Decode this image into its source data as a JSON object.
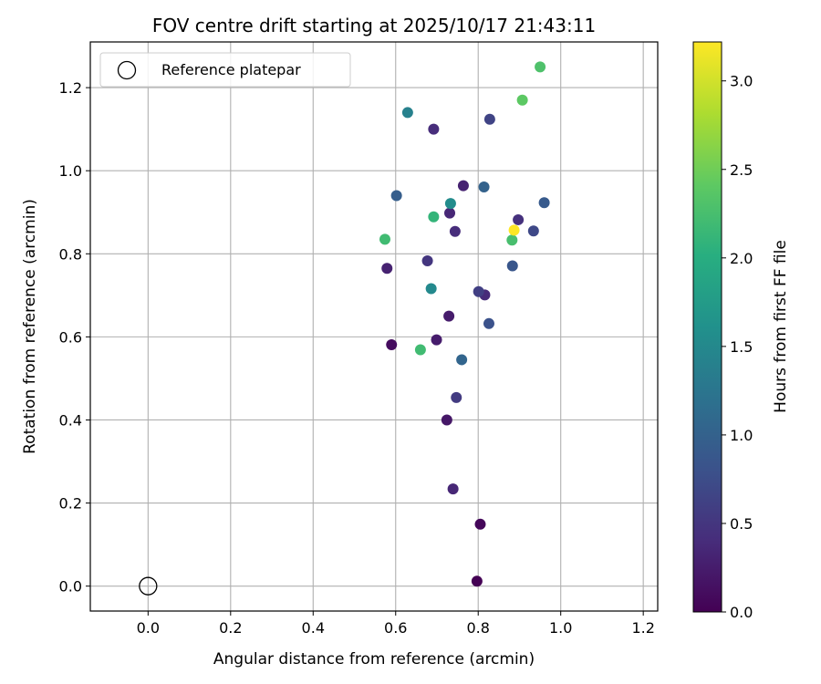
{
  "chart_data": {
    "type": "scatter",
    "title": "FOV centre drift starting at 2025/10/17 21:43:11",
    "xlabel": "Angular distance from reference (arcmin)",
    "ylabel": "Rotation from reference (arcmin)",
    "xlim": [
      -0.14,
      1.235
    ],
    "ylim": [
      -0.06,
      1.31
    ],
    "xticks": [
      0.0,
      0.2,
      0.4,
      0.6,
      0.8,
      1.0,
      1.2
    ],
    "yticks": [
      0.0,
      0.2,
      0.4,
      0.6,
      0.8,
      1.0,
      1.2
    ],
    "xtick_labels": [
      "0.0",
      "0.2",
      "0.4",
      "0.6",
      "0.8",
      "1.0",
      "1.2"
    ],
    "ytick_labels": [
      "0.0",
      "0.2",
      "0.4",
      "0.6",
      "0.8",
      "1.0",
      "1.2"
    ],
    "grid": true,
    "colormap": "viridis",
    "colorbar": {
      "label": "Hours from first FF file",
      "min": 0.0,
      "max": 3.22,
      "ticks": [
        0.0,
        0.5,
        1.0,
        1.5,
        2.0,
        2.5,
        3.0
      ],
      "tick_labels": [
        "0.0",
        "0.5",
        "1.0",
        "1.5",
        "2.0",
        "2.5",
        "3.0"
      ]
    },
    "legend": {
      "placement": "top-left",
      "entries": [
        {
          "label": "Reference platepar",
          "marker": "open-circle"
        }
      ]
    },
    "reference_point": {
      "x": 0.0,
      "y": 0.0
    },
    "points": [
      {
        "x": 0.797,
        "y": 0.012,
        "hours": 0.0
      },
      {
        "x": 0.805,
        "y": 0.149,
        "hours": 0.05
      },
      {
        "x": 0.59,
        "y": 0.581,
        "hours": 0.1
      },
      {
        "x": 0.724,
        "y": 0.4,
        "hours": 0.2
      },
      {
        "x": 0.699,
        "y": 0.593,
        "hours": 0.25
      },
      {
        "x": 0.729,
        "y": 0.65,
        "hours": 0.25
      },
      {
        "x": 0.579,
        "y": 0.765,
        "hours": 0.3
      },
      {
        "x": 0.764,
        "y": 0.964,
        "hours": 0.3
      },
      {
        "x": 0.739,
        "y": 0.234,
        "hours": 0.35
      },
      {
        "x": 0.731,
        "y": 0.898,
        "hours": 0.35
      },
      {
        "x": 0.816,
        "y": 0.701,
        "hours": 0.38
      },
      {
        "x": 0.692,
        "y": 1.1,
        "hours": 0.4
      },
      {
        "x": 0.744,
        "y": 0.854,
        "hours": 0.4
      },
      {
        "x": 0.897,
        "y": 0.882,
        "hours": 0.45
      },
      {
        "x": 0.677,
        "y": 0.783,
        "hours": 0.5
      },
      {
        "x": 0.747,
        "y": 0.454,
        "hours": 0.55
      },
      {
        "x": 0.801,
        "y": 0.709,
        "hours": 0.6
      },
      {
        "x": 0.828,
        "y": 1.124,
        "hours": 0.65
      },
      {
        "x": 0.934,
        "y": 0.855,
        "hours": 0.7
      },
      {
        "x": 0.826,
        "y": 0.632,
        "hours": 0.8
      },
      {
        "x": 0.883,
        "y": 0.771,
        "hours": 0.85
      },
      {
        "x": 0.96,
        "y": 0.923,
        "hours": 0.9
      },
      {
        "x": 0.602,
        "y": 0.94,
        "hours": 0.95
      },
      {
        "x": 0.814,
        "y": 0.961,
        "hours": 1.0
      },
      {
        "x": 0.76,
        "y": 0.545,
        "hours": 1.05
      },
      {
        "x": 0.629,
        "y": 1.14,
        "hours": 1.4
      },
      {
        "x": 0.686,
        "y": 0.716,
        "hours": 1.5
      },
      {
        "x": 0.733,
        "y": 0.921,
        "hours": 1.55
      },
      {
        "x": 0.574,
        "y": 0.835,
        "hours": 2.2
      },
      {
        "x": 0.692,
        "y": 0.889,
        "hours": 2.1
      },
      {
        "x": 0.66,
        "y": 0.569,
        "hours": 2.2
      },
      {
        "x": 0.882,
        "y": 0.833,
        "hours": 2.25
      },
      {
        "x": 0.95,
        "y": 1.25,
        "hours": 2.3
      },
      {
        "x": 0.907,
        "y": 1.17,
        "hours": 2.4
      },
      {
        "x": 0.887,
        "y": 0.857,
        "hours": 3.22
      }
    ]
  }
}
